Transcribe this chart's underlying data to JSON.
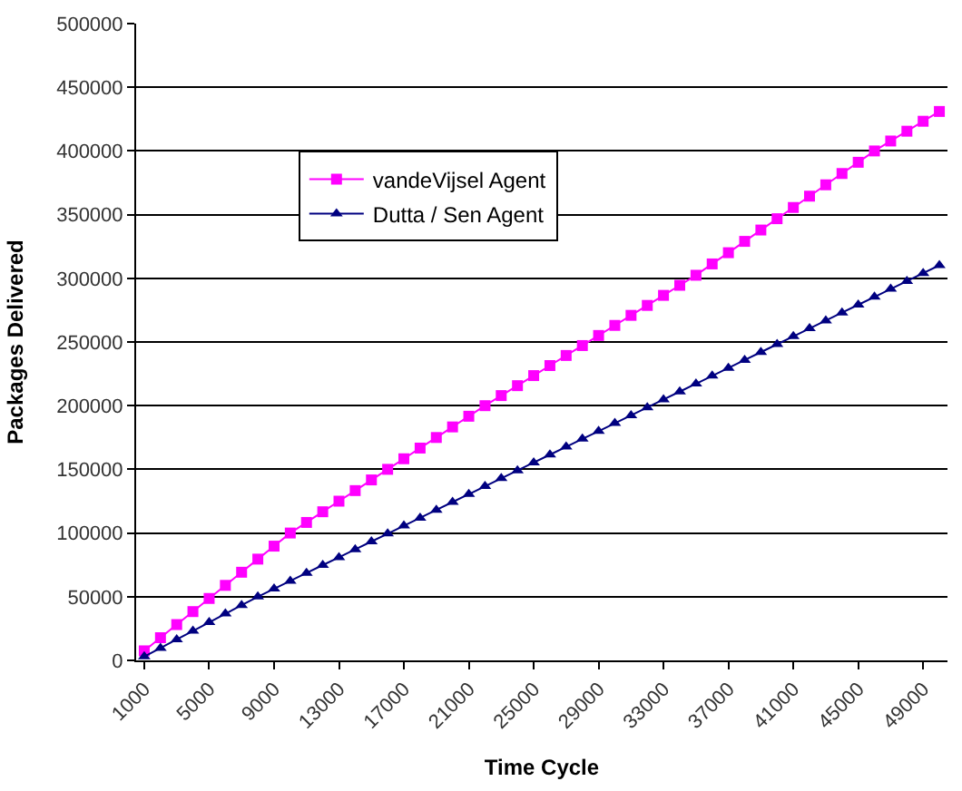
{
  "chart_data": {
    "type": "line",
    "xlabel": "Time Cycle",
    "ylabel": "Packages Delivered",
    "categories": [
      "1000",
      null,
      null,
      null,
      "5000",
      null,
      null,
      null,
      "9000",
      null,
      null,
      null,
      "13000",
      null,
      null,
      null,
      "17000",
      null,
      null,
      null,
      "21000",
      null,
      null,
      null,
      "25000",
      null,
      null,
      null,
      "29000",
      null,
      null,
      null,
      "33000",
      null,
      null,
      null,
      "37000",
      null,
      null,
      null,
      "41000",
      null,
      null,
      null,
      "45000",
      null,
      null,
      null,
      "49000",
      null
    ],
    "series": [
      {
        "name": "vandeVijsel Agent",
        "color": "#ff00ff",
        "marker": "square",
        "values": [
          7500,
          17800,
          28100,
          38300,
          48600,
          58900,
          69200,
          79500,
          89700,
          100000,
          108300,
          116700,
          125000,
          133300,
          141700,
          150000,
          158300,
          166700,
          175000,
          183300,
          191700,
          200000,
          207900,
          215700,
          223600,
          231500,
          239400,
          247200,
          255100,
          263000,
          270900,
          278700,
          286600,
          294500,
          302400,
          311300,
          320100,
          329000,
          337900,
          346800,
          355600,
          364500,
          373400,
          382300,
          391100,
          400000,
          407800,
          415500,
          423300,
          431000
        ]
      },
      {
        "name": "Dutta / Sen Agent",
        "color": "#000080",
        "marker": "triangle",
        "values": [
          3000,
          9700,
          16400,
          23100,
          29900,
          36600,
          43300,
          50000,
          56200,
          62400,
          68600,
          74800,
          80900,
          87100,
          93300,
          99500,
          105700,
          111900,
          118100,
          124300,
          130500,
          136700,
          142900,
          149100,
          155300,
          161500,
          167700,
          173900,
          180000,
          186200,
          192400,
          198600,
          204800,
          211000,
          217200,
          223400,
          229600,
          235800,
          242000,
          248200,
          254400,
          260600,
          266800,
          273000,
          279200,
          285400,
          291600,
          297800,
          304000,
          310200
        ]
      }
    ],
    "ylim": [
      0,
      500000
    ],
    "yticks": [
      0,
      50000,
      100000,
      150000,
      200000,
      250000,
      300000,
      350000,
      400000,
      450000,
      500000
    ],
    "grid": "y",
    "legend": "top left",
    "line_style": "solid"
  }
}
